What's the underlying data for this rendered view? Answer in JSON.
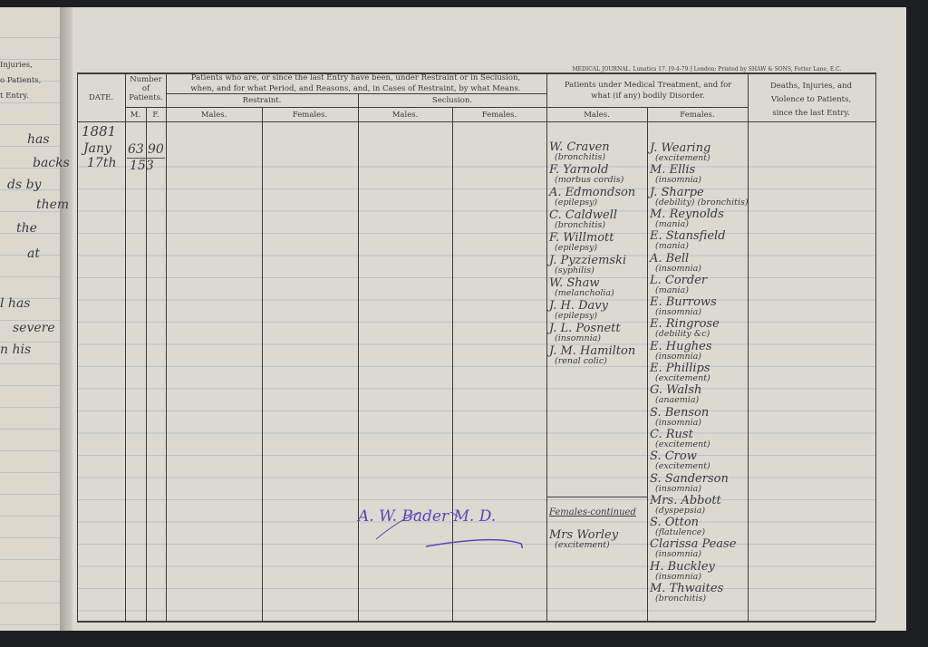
{
  "journal_header": "MEDICAL JOURNAL. Lunatics 17. [9-4-79.] London: Printed by SHAW & SONS, Fetter Lane, E.C.",
  "left_page": {
    "header_lines": [
      "Injuries,",
      "o Patients,",
      "t Entry."
    ],
    "handwriting": [
      "has",
      "backs",
      "ds by",
      "them",
      "the",
      "at",
      "l has",
      "severe",
      "n his"
    ]
  },
  "columns": {
    "date": "DATE.",
    "number": "Number of Patients.",
    "m": "M.",
    "f": "F.",
    "restraint_group": "Patients who are, or since the last Entry have been, under Restraint or in Seclusion, when, and for what Period, and Reasons, and, in Cases of Restraint, by what Means.",
    "restraint": "Restraint.",
    "seclusion": "Seclusion.",
    "medical_group": "Patients under Medical Treatment, and for what (if any) bodily Disorder.",
    "males": "Males.",
    "females": "Females.",
    "deaths": "Deaths, Injuries, and Violence to Patients, since the last Entry."
  },
  "entry": {
    "year": "1881",
    "month": "Jany",
    "day": "17th",
    "males_count": "63",
    "females_count": "90",
    "total": "153",
    "medical_males": [
      {
        "name": "W. Craven",
        "disorder": "(bronchitis)"
      },
      {
        "name": "F. Yarnold",
        "disorder": "(morbus cordis)"
      },
      {
        "name": "A. Edmondson",
        "disorder": "(epilepsy)"
      },
      {
        "name": "C. Caldwell",
        "disorder": "(bronchitis)"
      },
      {
        "name": "F. Willmott",
        "disorder": "(epilepsy)"
      },
      {
        "name": "J. Pyzziemski",
        "disorder": "(syphilis)"
      },
      {
        "name": "W. Shaw",
        "disorder": "(melancholia)"
      },
      {
        "name": "J. H. Davy",
        "disorder": "(epilepsy)"
      },
      {
        "name": "J. L. Posnett",
        "disorder": "(insomnia)"
      },
      {
        "name": "J. M. Hamilton",
        "disorder": "(renal colic)"
      }
    ],
    "females_continued_label": "Females-continued",
    "females_continued": [
      {
        "name": "Mrs Worley",
        "disorder": "(excitement)"
      }
    ],
    "medical_females": [
      {
        "name": "J. Wearing",
        "disorder": "(excitement)"
      },
      {
        "name": "M. Ellis",
        "disorder": "(insomnia)"
      },
      {
        "name": "J. Sharpe",
        "disorder": "(debility) (bronchitis)"
      },
      {
        "name": "M. Reynolds",
        "disorder": "(mania)"
      },
      {
        "name": "E. Stansfield",
        "disorder": "(mania)"
      },
      {
        "name": "A. Bell",
        "disorder": "(insomnia)"
      },
      {
        "name": "L. Corder",
        "disorder": "(mania)"
      },
      {
        "name": "E. Burrows",
        "disorder": "(insomnia)"
      },
      {
        "name": "E. Ringrose",
        "disorder": "(debility &c)"
      },
      {
        "name": "E. Hughes",
        "disorder": "(insomnia)"
      },
      {
        "name": "E. Phillips",
        "disorder": "(excitement)"
      },
      {
        "name": "G. Walsh",
        "disorder": "(anaemia)"
      },
      {
        "name": "S. Benson",
        "disorder": "(insomnia)"
      },
      {
        "name": "C. Rust",
        "disorder": "(excitement)"
      },
      {
        "name": "S. Crow",
        "disorder": "(excitement)"
      },
      {
        "name": "S. Sanderson",
        "disorder": "(insomnia)"
      },
      {
        "name": "Mrs. Abbott",
        "disorder": "(dyspepsia)"
      },
      {
        "name": "S. Otton",
        "disorder": "(flatulence)"
      },
      {
        "name": "Clarissa Pease",
        "disorder": "(insomnia)"
      },
      {
        "name": "H. Buckley",
        "disorder": "(insomnia)"
      },
      {
        "name": "M. Thwaites",
        "disorder": "(bronchitis)"
      }
    ],
    "signature": "A. W. Bader M. D."
  },
  "colors": {
    "ink": "#3a3a44",
    "signature_ink": "#5848b8",
    "paper": "#dcd9d0",
    "rule": "#b5c3cc"
  }
}
